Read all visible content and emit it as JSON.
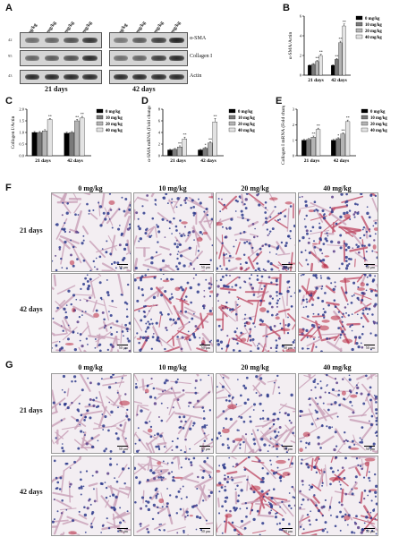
{
  "panels": {
    "A": "A",
    "B": "B",
    "C": "C",
    "D": "D",
    "E": "E",
    "F": "F",
    "G": "G"
  },
  "blot": {
    "lanes": [
      "0 mg/kg",
      "10 mg/kg",
      "20 mg/kg",
      "40 mg/kg"
    ],
    "rows": [
      "α-SMA",
      "Collagen I",
      "Actin"
    ],
    "mw_markers": [
      "42",
      "95",
      "43"
    ],
    "groups": [
      "21 days",
      "42 days"
    ]
  },
  "legend_entries": [
    "0 mg/kg",
    "10 mg/kg",
    "20 mg/kg",
    "40 mg/kg"
  ],
  "series_colors": [
    "#000000",
    "#7a7a7a",
    "#b4b4b4",
    "#e3e3e3"
  ],
  "chart_data": [
    {
      "id": "B",
      "type": "bar",
      "categories": [
        "21 days",
        "42 days"
      ],
      "ylabel": "α-SMA/Actin",
      "ylim": [
        0,
        6
      ],
      "yticks": [
        0,
        2,
        4,
        6
      ],
      "series": [
        {
          "name": "0 mg/kg",
          "values": [
            1.0,
            1.0
          ],
          "err": [
            0.05,
            0.05
          ],
          "sig": [
            "",
            ""
          ]
        },
        {
          "name": "10 mg/kg",
          "values": [
            1.1,
            1.6
          ],
          "err": [
            0.08,
            0.1
          ],
          "sig": [
            "",
            "**"
          ]
        },
        {
          "name": "20 mg/kg",
          "values": [
            1.4,
            3.3
          ],
          "err": [
            0.1,
            0.15
          ],
          "sig": [
            "**",
            "**"
          ]
        },
        {
          "name": "40 mg/kg",
          "values": [
            2.0,
            5.0
          ],
          "err": [
            0.12,
            0.2
          ],
          "sig": [
            "**",
            "**"
          ]
        }
      ]
    },
    {
      "id": "C",
      "type": "bar",
      "categories": [
        "21 days",
        "42 days"
      ],
      "ylabel": "Collagen I/Actin",
      "ylim": [
        0,
        2.0
      ],
      "yticks": [
        0.0,
        0.5,
        1.0,
        1.5,
        2.0
      ],
      "series": [
        {
          "name": "0 mg/kg",
          "values": [
            1.0,
            0.97
          ],
          "err": [
            0.04,
            0.04
          ],
          "sig": [
            "",
            ""
          ]
        },
        {
          "name": "10 mg/kg",
          "values": [
            1.0,
            1.0
          ],
          "err": [
            0.04,
            0.04
          ],
          "sig": [
            "",
            ""
          ]
        },
        {
          "name": "20 mg/kg",
          "values": [
            1.07,
            1.5
          ],
          "err": [
            0.05,
            0.06
          ],
          "sig": [
            "",
            "**"
          ]
        },
        {
          "name": "40 mg/kg",
          "values": [
            1.55,
            1.62
          ],
          "err": [
            0.05,
            0.07
          ],
          "sig": [
            "**",
            "**"
          ]
        }
      ]
    },
    {
      "id": "D",
      "type": "bar",
      "categories": [
        "21 days",
        "42 days"
      ],
      "ylabel": "α-SMA mRNA (Fold change)",
      "ylim": [
        0,
        8
      ],
      "yticks": [
        0,
        2,
        4,
        6,
        8
      ],
      "series": [
        {
          "name": "0 mg/kg",
          "values": [
            1.0,
            1.0
          ],
          "err": [
            0.1,
            0.1
          ],
          "sig": [
            "",
            ""
          ]
        },
        {
          "name": "10 mg/kg",
          "values": [
            1.1,
            1.3
          ],
          "err": [
            0.15,
            0.15
          ],
          "sig": [
            "",
            "*"
          ]
        },
        {
          "name": "20 mg/kg",
          "values": [
            1.5,
            2.2
          ],
          "err": [
            0.2,
            0.2
          ],
          "sig": [
            "**",
            "**"
          ]
        },
        {
          "name": "40 mg/kg",
          "values": [
            2.9,
            5.8
          ],
          "err": [
            0.3,
            0.6
          ],
          "sig": [
            "**",
            "**"
          ]
        }
      ]
    },
    {
      "id": "E",
      "type": "bar",
      "categories": [
        "21 days",
        "42 days"
      ],
      "ylabel": "Collagen I mRNA (Fold change)",
      "ylim": [
        0,
        3
      ],
      "yticks": [
        0,
        1,
        2,
        3
      ],
      "series": [
        {
          "name": "0 mg/kg",
          "values": [
            1.0,
            1.0
          ],
          "err": [
            0.05,
            0.05
          ],
          "sig": [
            "",
            ""
          ]
        },
        {
          "name": "10 mg/kg",
          "values": [
            1.05,
            1.1
          ],
          "err": [
            0.06,
            0.06
          ],
          "sig": [
            "",
            "*"
          ]
        },
        {
          "name": "20 mg/kg",
          "values": [
            1.2,
            1.4
          ],
          "err": [
            0.07,
            0.08
          ],
          "sig": [
            "**",
            "**"
          ]
        },
        {
          "name": "40 mg/kg",
          "values": [
            1.7,
            2.2
          ],
          "err": [
            0.08,
            0.1
          ],
          "sig": [
            "**",
            "**"
          ]
        }
      ]
    }
  ],
  "histology": {
    "columns": [
      "0 mg/kg",
      "10 mg/kg",
      "20 mg/kg",
      "40 mg/kg"
    ],
    "rows": [
      "21 days",
      "42 days"
    ],
    "scale_bar": "50 μm",
    "F_red_level": [
      [
        0.15,
        0.35,
        0.45,
        0.6
      ],
      [
        0.25,
        0.5,
        0.75,
        0.7
      ]
    ],
    "G_red_level": [
      [
        0.1,
        0.2,
        0.3,
        0.4
      ],
      [
        0.1,
        0.3,
        0.45,
        0.55
      ]
    ]
  }
}
